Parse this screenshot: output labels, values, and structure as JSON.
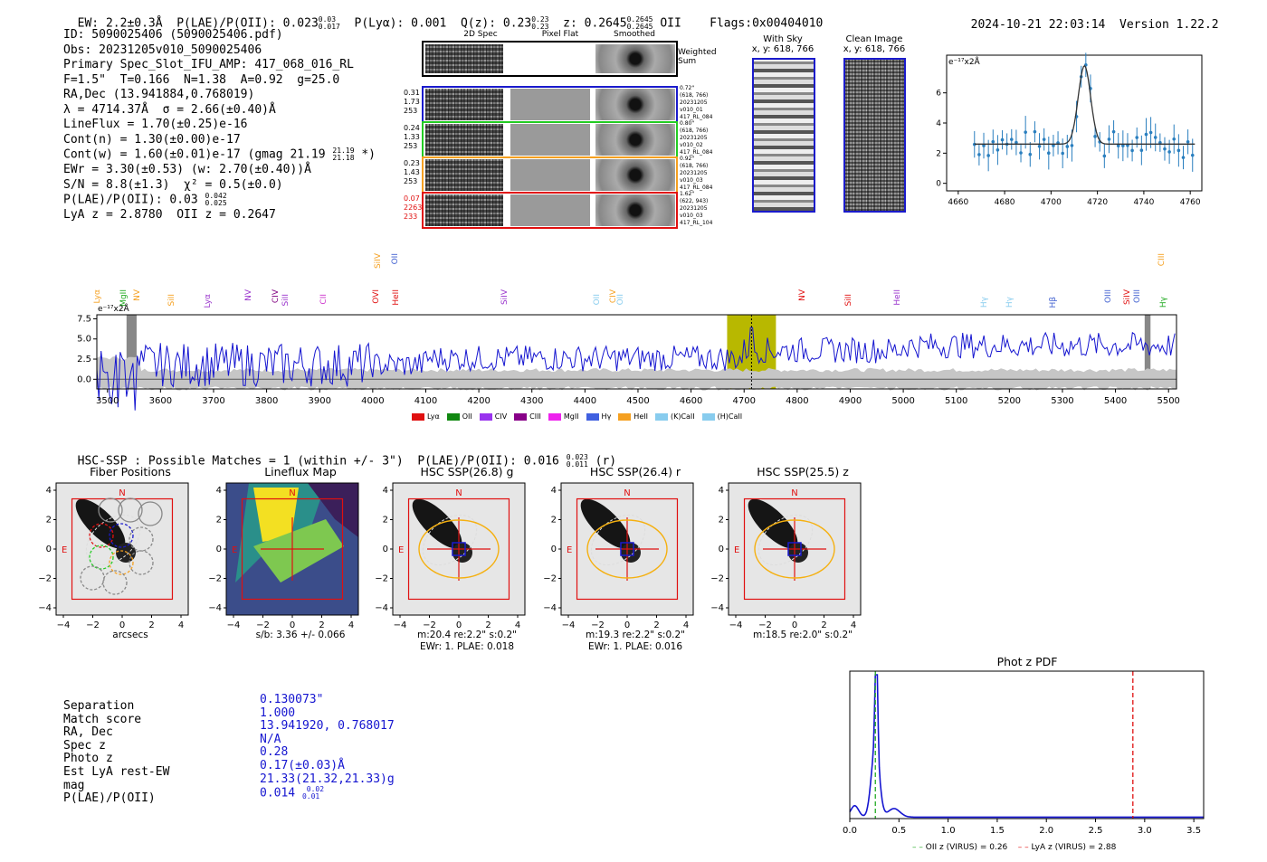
{
  "header": {
    "ew": "EW: 2.2±0.3Å",
    "plae_label": "P(LAE)/P(OII): 0.023",
    "plae_sup": "0.03",
    "plae_sub": "0.017",
    "plya": "P(Lyα): 0.001",
    "qz_label": "Q(z): 0.23",
    "qz_sup": "0.23",
    "qz_sub": "0.23",
    "z_label": "z: 0.2645",
    "z_sup": "0.2645",
    "z_sub": "0.2645",
    "z_line": "OII",
    "flags": "Flags:0x00404010",
    "timestamp": "2024-10-21 22:03:14",
    "version": "Version 1.22.2"
  },
  "info": {
    "id": "ID: 5090025406 (5090025406.pdf)",
    "obs": "Obs: 20231205v010_5090025406",
    "primary": "Primary Spec_Slot_IFU_AMP: 417_068_016_RL",
    "params": "F=1.5\"  T=0.166  N=1.38  A=0.92  g=25.0",
    "radec": "RA,Dec (13.941884,0.768019)",
    "lambda": "λ = 4714.37Å  σ = 2.66(±0.40)Å",
    "lineflux": "LineFlux = 1.70(±0.25)e-16",
    "contn": "Cont(n) = 1.30(±0.00)e-17",
    "contw": "Cont(w) = 1.60(±0.01)e-17 (gmag 21.19",
    "contw_sup": "21.19",
    "contw_sub": "21.18",
    "contw_end": "*)",
    "ewr": "EWr = 3.30(±0.53) (w: 2.70(±0.40))Å",
    "sn": "S/N = 8.8(±1.3)  χ² = 0.5(±0.0)",
    "plae": "P(LAE)/P(OII): 0.03",
    "plae_sup": "0.042",
    "plae_sub": "0.025",
    "zline": "LyA z = 2.8780  OII z = 0.2647"
  },
  "spec2d": {
    "col_titles": [
      "2D Spec",
      "Pixel Flat",
      "Smoothed"
    ],
    "weighted_sum": "Weighted Sum",
    "rows": [
      {
        "nums": [
          "0.31",
          "1.73",
          "253"
        ],
        "meta": [
          "0.72\"",
          "(618, 766)",
          "20231205",
          "v010_01",
          "417_RL_084"
        ],
        "color": "#1a1acc"
      },
      {
        "nums": [
          "0.24",
          "1.33",
          "253"
        ],
        "meta": [
          "0.80\"",
          "(618, 766)",
          "20231205",
          "v010_02",
          "417_RL_084"
        ],
        "color": "#22cc22"
      },
      {
        "nums": [
          "0.23",
          "1.43",
          "253"
        ],
        "meta": [
          "0.92\"",
          "(618, 766)",
          "20231205",
          "v010_03",
          "417_RL_084"
        ],
        "color": "#f5a020"
      },
      {
        "nums": [
          "0.07",
          "2263",
          "233"
        ],
        "meta": [
          "1.62\"",
          "(622, 943)",
          "20231205",
          "v010_03",
          "417_RL_104"
        ],
        "color": "#e01010"
      }
    ]
  },
  "cutouts": {
    "with_sky": "With Sky",
    "with_sky_xy": "x, y: 618, 766",
    "clean": "Clean Image",
    "clean_xy": "x, y: 618, 766"
  },
  "zoom_plot": {
    "ylabel": "e⁻¹⁷x2Å",
    "xticks": [
      "4660",
      "4680",
      "4700",
      "4720",
      "4740",
      "4760"
    ],
    "yticks": [
      "0",
      "2",
      "4",
      "6"
    ]
  },
  "full_spec": {
    "ylabel": "e⁻¹⁷x2Å",
    "xticks": [
      "3500",
      "3600",
      "3700",
      "3800",
      "3900",
      "4000",
      "4100",
      "4200",
      "4300",
      "4400",
      "4500",
      "4600",
      "4700",
      "4800",
      "4900",
      "5000",
      "5100",
      "5200",
      "5300",
      "5400",
      "5500"
    ],
    "yticks": [
      "0.0",
      "2.5",
      "5.0",
      "7.5"
    ],
    "line_labels": [
      {
        "t": "Lyα",
        "c": "#f5a020"
      },
      {
        "t": "MgII",
        "c": "#22aa22"
      },
      {
        "t": "NV",
        "c": "#f5a020"
      },
      {
        "t": "SiII",
        "c": "#f5a020"
      },
      {
        "t": "Lyα",
        "c": "#9933cc"
      },
      {
        "t": "NV",
        "c": "#9933cc"
      },
      {
        "t": "CIV",
        "c": "#800080"
      },
      {
        "t": "SiII",
        "c": "#9933cc"
      },
      {
        "t": "CII",
        "c": "#cc33cc"
      },
      {
        "t": "OVI",
        "c": "#e01010"
      },
      {
        "t": "HeII",
        "c": "#e01010"
      },
      {
        "t": "SiIV",
        "c": "#f5a020"
      },
      {
        "t": "OII",
        "c": "#4060d0"
      },
      {
        "t": "SiIV",
        "c": "#9933cc"
      },
      {
        "t": "OII",
        "c": "#88ccee"
      },
      {
        "t": "CIV",
        "c": "#f5a020"
      },
      {
        "t": "OII",
        "c": "#88ccee"
      },
      {
        "t": "NV",
        "c": "#e01010"
      },
      {
        "t": "SiII",
        "c": "#e01010"
      },
      {
        "t": "HeII",
        "c": "#9933cc"
      },
      {
        "t": "Hγ",
        "c": "#88ccee"
      },
      {
        "t": "Hγ",
        "c": "#88ccee"
      },
      {
        "t": "Hβ",
        "c": "#4060d0"
      },
      {
        "t": "OIII",
        "c": "#4060d0"
      },
      {
        "t": "SiIV",
        "c": "#e01010"
      },
      {
        "t": "OIII",
        "c": "#4060d0"
      },
      {
        "t": "CIII",
        "c": "#f5a020"
      },
      {
        "t": "Hγ",
        "c": "#22aa22"
      }
    ],
    "legend": [
      {
        "t": "Lyα",
        "c": "#e01010"
      },
      {
        "t": "OII",
        "c": "#118811"
      },
      {
        "t": "CIV",
        "c": "#9933ee"
      },
      {
        "t": "CIII",
        "c": "#880088"
      },
      {
        "t": "MgII",
        "c": "#ee22ee"
      },
      {
        "t": "Hγ",
        "c": "#4060e0"
      },
      {
        "t": "HeII",
        "c": "#f5a020"
      },
      {
        "t": "(K)CaII",
        "c": "#88ccee"
      },
      {
        "t": "(H)CaII",
        "c": "#88ccee"
      }
    ]
  },
  "hsc": {
    "summary": "HSC-SSP : Possible Matches = 1 (within +/- 3\")  P(LAE)/P(OII): 0.016",
    "summary_sup": "0.023",
    "summary_sub": "0.011",
    "summary_band": "(r)",
    "panels": [
      {
        "title": "Fiber Positions",
        "caption1": "arcsecs",
        "caption2": ""
      },
      {
        "title": "Lineflux Map",
        "caption1": "s/b: 3.36 +/- 0.066",
        "caption2": ""
      },
      {
        "title": "HSC SSP(26.8) g",
        "caption1": "m:20.4  re:2.2\"  s:0.2\"",
        "caption2": "EWr: 1. PLAE: 0.018"
      },
      {
        "title": "HSC SSP(26.4) r",
        "caption1": "m:19.3  re:2.2\"  s:0.2\"",
        "caption2": "EWr: 1. PLAE: 0.016"
      },
      {
        "title": "HSC SSP(25.5) z",
        "caption1": "m:18.5  re:2.0\"  s:0.2\"",
        "caption2": ""
      }
    ],
    "axis_ticks_x": [
      "−4",
      "−2",
      "0",
      "2",
      "4"
    ],
    "axis_ticks_y": [
      "4",
      "2",
      "0",
      "−2",
      "−4"
    ],
    "compass_n": "N",
    "compass_e": "E"
  },
  "match": {
    "labels": [
      "Separation",
      "Match score",
      "RA, Dec",
      "Spec z",
      "Photo z",
      "Est LyA rest-EW",
      "mag",
      "P(LAE)/P(OII)"
    ],
    "values": [
      "0.130073\"",
      "1.000",
      "13.941920, 0.768017",
      "N/A",
      "0.28",
      "0.17(±0.03)Å",
      "21.33(21.32,21.33)g",
      "0.014"
    ],
    "plae_sup": "0.02",
    "plae_sub": "0.01"
  },
  "photz": {
    "title": "Phot z PDF",
    "xticks": [
      "0.0",
      "0.5",
      "1.0",
      "1.5",
      "2.0",
      "2.5",
      "3.0",
      "3.5"
    ],
    "legend_oii": "OII z (VIRUS) = 0.26",
    "legend_lya": "LyA z (VIRUS) = 2.88"
  }
}
